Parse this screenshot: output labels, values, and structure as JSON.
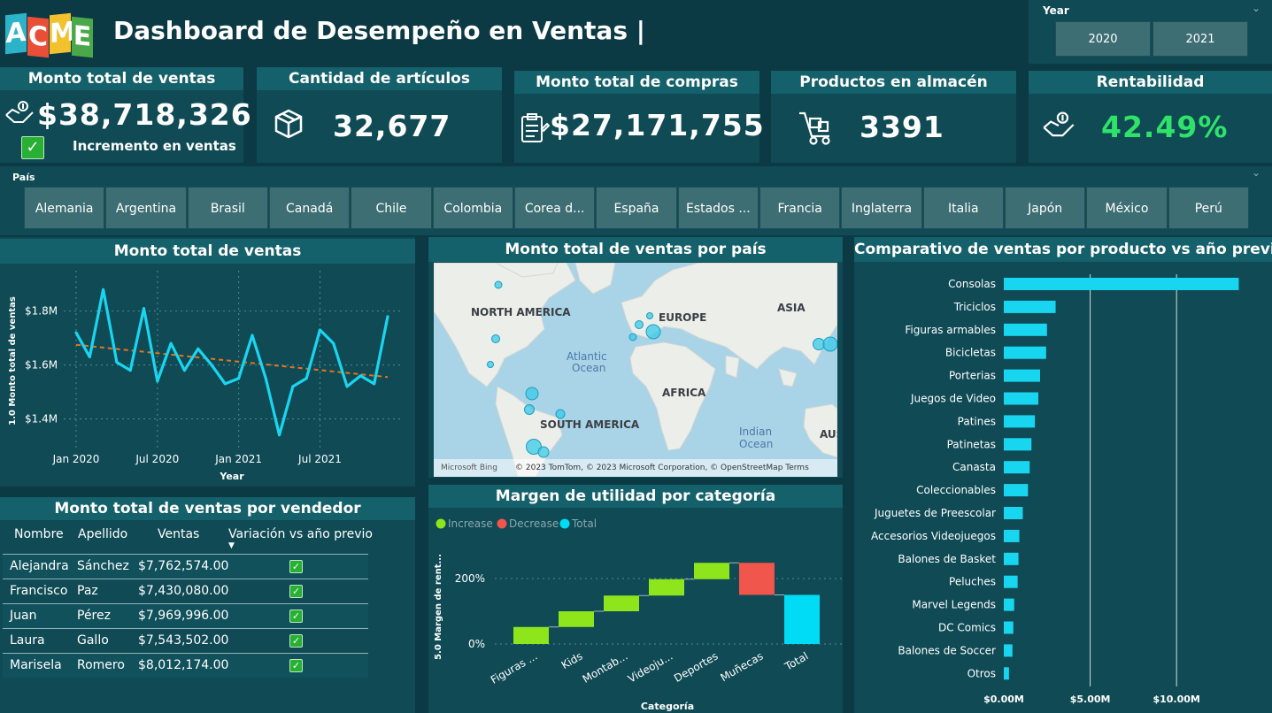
{
  "header": {
    "title": "Dashboard de Desempeño en Ventas |",
    "logo_letters": [
      "A",
      "C",
      "M",
      "E"
    ],
    "logo_colors": [
      "#2ab3c9",
      "#e94f37",
      "#f2c12e",
      "#4aa84a"
    ]
  },
  "year_slicer": {
    "label": "Year",
    "options": [
      "2020",
      "2021"
    ]
  },
  "kpis": {
    "ventas": {
      "title": "Monto total de ventas",
      "value": "$38,718,326",
      "sub": "Incremento en ventas"
    },
    "articulos": {
      "title": "Cantidad de artículos",
      "value": "32,677"
    },
    "compras": {
      "title": "Monto total de compras",
      "value": "$27,171,755"
    },
    "almacen": {
      "title": "Productos en almacén",
      "value": "3391"
    },
    "rentabilidad": {
      "title": "Rentabilidad",
      "value": "42.49%",
      "value_color": "#2ee26a"
    }
  },
  "country_slicer": {
    "label": "País",
    "options": [
      "Alemania",
      "Argentina",
      "Brasil",
      "Canadá",
      "Chile",
      "Colombia",
      "Corea d...",
      "España",
      "Estados ...",
      "Francia",
      "Inglaterra",
      "Italia",
      "Japón",
      "México",
      "Perú"
    ]
  },
  "line_panel": {
    "title": "Monto total de ventas"
  },
  "map_panel": {
    "title": "Monto total de ventas por país",
    "labels": {
      "na": "NORTH AMERICA",
      "eu": "EUROPE",
      "asia": "ASIA",
      "atl1": "Atlantic",
      "atl2": "Ocean",
      "africa": "AFRICA",
      "sa": "SOUTH AMERICA",
      "ind1": "Indian",
      "ind2": "Ocean",
      "aus": "AUS"
    },
    "attribution": "© 2023 TomTom, © 2023 Microsoft Corporation, © OpenStreetMap  Terms",
    "bing": "Microsoft Bing"
  },
  "waterfall_panel": {
    "title": "Margen de utilidad por categoría",
    "legend": [
      "Increase",
      "Decrease",
      "Total"
    ]
  },
  "vendor_table": {
    "title": "Monto total de ventas por vendedor",
    "headers": [
      "Nombre",
      "Apellido",
      "Ventas",
      "Variación vs año previo"
    ],
    "rows": [
      {
        "nombre": "Alejandra",
        "apellido": "Sánchez",
        "ventas": "$7,762,574.00"
      },
      {
        "nombre": "Francisco",
        "apellido": "Paz",
        "ventas": "$7,430,080.00"
      },
      {
        "nombre": "Juan",
        "apellido": "Pérez",
        "ventas": "$7,969,996.00"
      },
      {
        "nombre": "Laura",
        "apellido": "Gallo",
        "ventas": "$7,543,502.00"
      },
      {
        "nombre": "Marisela",
        "apellido": "Romero",
        "ventas": "$8,012,174.00"
      }
    ]
  },
  "bar_panel": {
    "title": "Comparativo de ventas por producto vs año previo"
  },
  "colors": {
    "accent": "#19d6f0",
    "increase": "#8ee51b",
    "decrease": "#f0564b",
    "total": "#00dcf5",
    "trend": "#e8741c"
  },
  "chart_data": [
    {
      "id": "line",
      "type": "line",
      "title": "Monto total de ventas",
      "xlabel": "Year",
      "ylabel": "1.0 Monto total de ventas",
      "x_ticks": [
        "Jan 2020",
        "Jul 2020",
        "Jan 2021",
        "Jul 2021"
      ],
      "y_ticks": [
        "$1.4M",
        "$1.6M",
        "$1.8M"
      ],
      "ylim": [
        1.28,
        1.95
      ],
      "values": [
        1.72,
        1.63,
        1.88,
        1.61,
        1.58,
        1.81,
        1.54,
        1.68,
        1.58,
        1.66,
        1.6,
        1.53,
        1.55,
        1.71,
        1.55,
        1.34,
        1.52,
        1.55,
        1.73,
        1.68,
        1.52,
        1.56,
        1.53,
        1.78
      ],
      "trend": [
        1.675,
        1.555
      ]
    },
    {
      "id": "waterfall",
      "type": "bar",
      "title": "Margen de utilidad por categoría",
      "xlabel": "Categoría",
      "ylabel": "5.0 Margen de rent...",
      "y_ticks": [
        "0%",
        "200%"
      ],
      "categories": [
        "Figuras ...",
        "Kids",
        "Montab...",
        "Videoju...",
        "Deportes",
        "Muñecas",
        "Total"
      ],
      "start": [
        0,
        52,
        100,
        148,
        198,
        248,
        0
      ],
      "end": [
        52,
        100,
        148,
        198,
        248,
        150,
        150
      ],
      "kind": [
        "increase",
        "increase",
        "increase",
        "increase",
        "increase",
        "decrease",
        "total"
      ],
      "ylim": [
        -40,
        300
      ]
    },
    {
      "id": "hbar",
      "type": "bar",
      "title": "Comparativo de ventas por producto vs año previo",
      "categories": [
        "Consolas",
        "Triciclos",
        "Figuras armables",
        "Bicicletas",
        "Porterias",
        "Juegos de Video",
        "Patines",
        "Patinetas",
        "Canasta",
        "Coleccionables",
        "Juguetes de Preescolar",
        "Accesorios Videojuegos",
        "Balones de Basket",
        "Peluches",
        "Marvel Legends",
        "DC Comics",
        "Balones de Soccer",
        "Otros"
      ],
      "values": [
        13.6,
        3.0,
        2.5,
        2.45,
        2.1,
        2.0,
        1.8,
        1.6,
        1.5,
        1.4,
        1.1,
        0.9,
        0.85,
        0.8,
        0.6,
        0.55,
        0.5,
        0.3
      ],
      "x_ticks": [
        "$0.00M",
        "$5.00M",
        "$10.00M"
      ],
      "xlim": [
        0,
        14.5
      ]
    }
  ]
}
